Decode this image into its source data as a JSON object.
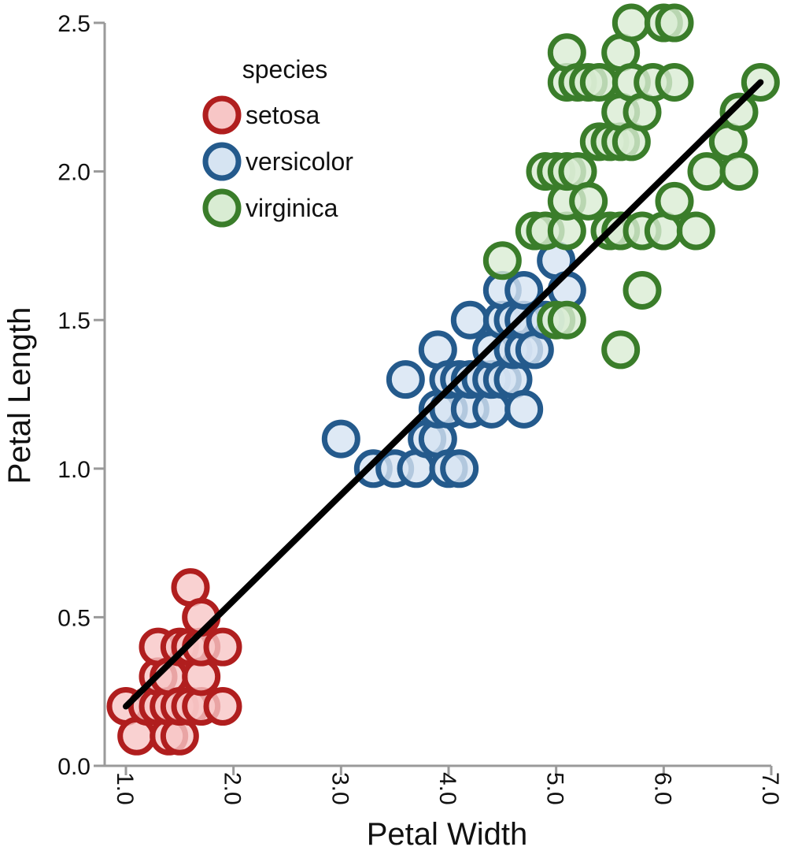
{
  "chart_data": {
    "type": "scatter",
    "xlabel": "Petal Width",
    "ylabel": "Petal Length",
    "xlim": [
      1.0,
      7.0
    ],
    "ylim": [
      0.0,
      2.5
    ],
    "xticks": [
      "1.0",
      "2.0",
      "3.0",
      "4.0",
      "5.0",
      "6.0",
      "7.0"
    ],
    "yticks": [
      "0.0",
      "0.5",
      "1.0",
      "1.5",
      "2.0",
      "2.5"
    ],
    "grid": false,
    "legend": {
      "title": "species",
      "position": "top-left"
    },
    "series": [
      {
        "name": "setosa",
        "stroke": "#b01e1e",
        "fill": "#f7c6c6",
        "points": [
          [
            1.0,
            0.2
          ],
          [
            1.1,
            0.1
          ],
          [
            1.2,
            0.2
          ],
          [
            1.3,
            0.2
          ],
          [
            1.3,
            0.3
          ],
          [
            1.3,
            0.4
          ],
          [
            1.4,
            0.1
          ],
          [
            1.4,
            0.2
          ],
          [
            1.4,
            0.3
          ],
          [
            1.5,
            0.1
          ],
          [
            1.5,
            0.2
          ],
          [
            1.5,
            0.4
          ],
          [
            1.6,
            0.2
          ],
          [
            1.6,
            0.4
          ],
          [
            1.6,
            0.6
          ],
          [
            1.7,
            0.2
          ],
          [
            1.7,
            0.3
          ],
          [
            1.7,
            0.4
          ],
          [
            1.7,
            0.5
          ],
          [
            1.9,
            0.2
          ],
          [
            1.9,
            0.4
          ]
        ]
      },
      {
        "name": "versicolor",
        "stroke": "#245a8c",
        "fill": "#d6e4f2",
        "points": [
          [
            3.0,
            1.1
          ],
          [
            3.3,
            1.0
          ],
          [
            3.5,
            1.0
          ],
          [
            3.6,
            1.3
          ],
          [
            3.7,
            1.0
          ],
          [
            3.8,
            1.1
          ],
          [
            3.9,
            1.1
          ],
          [
            3.9,
            1.2
          ],
          [
            3.9,
            1.4
          ],
          [
            4.0,
            1.0
          ],
          [
            4.0,
            1.2
          ],
          [
            4.0,
            1.3
          ],
          [
            4.1,
            1.0
          ],
          [
            4.1,
            1.3
          ],
          [
            4.2,
            1.2
          ],
          [
            4.2,
            1.3
          ],
          [
            4.2,
            1.5
          ],
          [
            4.3,
            1.3
          ],
          [
            4.4,
            1.2
          ],
          [
            4.4,
            1.3
          ],
          [
            4.4,
            1.4
          ],
          [
            4.5,
            1.3
          ],
          [
            4.5,
            1.5
          ],
          [
            4.5,
            1.6
          ],
          [
            4.6,
            1.3
          ],
          [
            4.6,
            1.4
          ],
          [
            4.6,
            1.5
          ],
          [
            4.7,
            1.2
          ],
          [
            4.7,
            1.4
          ],
          [
            4.7,
            1.5
          ],
          [
            4.7,
            1.6
          ],
          [
            4.8,
            1.4
          ],
          [
            4.9,
            1.5
          ],
          [
            5.0,
            1.7
          ],
          [
            5.1,
            1.6
          ]
        ]
      },
      {
        "name": "virginica",
        "stroke": "#3a7d2a",
        "fill": "#d9ecd3",
        "points": [
          [
            4.5,
            1.7
          ],
          [
            4.8,
            1.8
          ],
          [
            4.9,
            1.8
          ],
          [
            4.9,
            2.0
          ],
          [
            5.0,
            1.5
          ],
          [
            5.0,
            2.0
          ],
          [
            5.1,
            1.5
          ],
          [
            5.1,
            1.8
          ],
          [
            5.1,
            1.9
          ],
          [
            5.1,
            2.0
          ],
          [
            5.1,
            2.3
          ],
          [
            5.1,
            2.4
          ],
          [
            5.2,
            2.0
          ],
          [
            5.2,
            2.3
          ],
          [
            5.3,
            1.9
          ],
          [
            5.3,
            2.3
          ],
          [
            5.4,
            2.1
          ],
          [
            5.4,
            2.3
          ],
          [
            5.5,
            1.8
          ],
          [
            5.5,
            2.1
          ],
          [
            5.6,
            1.4
          ],
          [
            5.6,
            1.8
          ],
          [
            5.6,
            2.1
          ],
          [
            5.6,
            2.2
          ],
          [
            5.6,
            2.4
          ],
          [
            5.7,
            2.1
          ],
          [
            5.7,
            2.3
          ],
          [
            5.7,
            2.5
          ],
          [
            5.8,
            1.6
          ],
          [
            5.8,
            1.8
          ],
          [
            5.8,
            2.2
          ],
          [
            5.9,
            2.3
          ],
          [
            6.0,
            1.8
          ],
          [
            6.0,
            2.5
          ],
          [
            6.1,
            1.9
          ],
          [
            6.1,
            2.3
          ],
          [
            6.1,
            2.5
          ],
          [
            6.3,
            1.8
          ],
          [
            6.4,
            2.0
          ],
          [
            6.6,
            2.1
          ],
          [
            6.7,
            2.0
          ],
          [
            6.7,
            2.2
          ],
          [
            6.9,
            2.3
          ]
        ]
      }
    ],
    "trendline": {
      "color": "#000000",
      "from": [
        1.0,
        0.2
      ],
      "to": [
        6.9,
        2.3
      ]
    }
  }
}
